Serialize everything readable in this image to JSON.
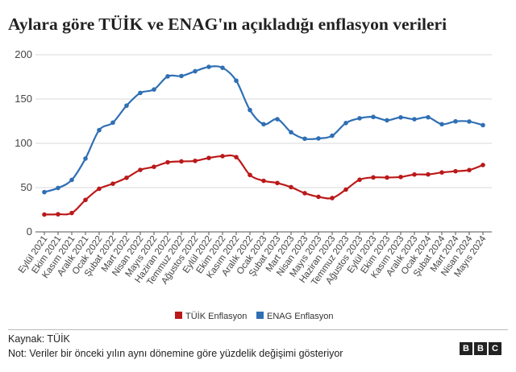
{
  "title": "Aylara göre TÜİK ve ENAG'ın açıkladığı enflasyon verileri",
  "source": "Kaynak: TÜİK",
  "note": "Not: Veriler bir önceki yılın aynı dönemine göre yüzdelik değişimi gösteriyor",
  "logo": [
    "B",
    "B",
    "C"
  ],
  "chart_data": {
    "type": "line",
    "title": "Aylara göre TÜİK ve ENAG'ın açıkladığı enflasyon verileri",
    "xlabel": "",
    "ylabel": "",
    "ylim": [
      0,
      200
    ],
    "yticks": [
      0,
      50,
      100,
      150,
      200
    ],
    "grid": true,
    "legend_position": "bottom-center",
    "categories": [
      "Eylül 2021",
      "Ekim 2021",
      "Kasım 2021",
      "Aralık 2021",
      "Ocak 2022",
      "Şubat 2022",
      "Mart 2022",
      "Nisan 2022",
      "Mayıs 2022",
      "Haziran 2022",
      "Temmuz 2022",
      "Ağustos 2022",
      "Eylül 2022",
      "Ekim 2022",
      "Kasım 2022",
      "Aralık 2022",
      "Ocak 2023",
      "Şubat 2023",
      "Mart 2023",
      "Nisan 2023",
      "Mayıs 2023",
      "Haziran 2023",
      "Temmuz 2023",
      "Ağustos 2023",
      "Eylül 2023",
      "Ekim 2023",
      "Kasım 2023",
      "Aralık 2023",
      "Ocak 2024",
      "Şubat 2024",
      "Mart 2024",
      "Nisan 2024",
      "Mayıs 2024"
    ],
    "series": [
      {
        "name": "TÜİK Enflasyon",
        "color": "#bb1919",
        "values": [
          19.6,
          19.9,
          21.3,
          36.1,
          48.7,
          54.4,
          61.1,
          70.0,
          73.5,
          78.6,
          79.6,
          80.2,
          83.5,
          85.5,
          84.4,
          64.3,
          57.7,
          55.2,
          50.5,
          43.7,
          39.6,
          38.2,
          47.8,
          58.9,
          61.5,
          61.4,
          62.0,
          64.8,
          64.9,
          67.1,
          68.5,
          69.8,
          75.5
        ]
      },
      {
        "name": "ENAG Enflasyon",
        "color": "#2f6fb4",
        "values": [
          44.9,
          49.6,
          58.7,
          82.8,
          114.9,
          123.4,
          142.6,
          156.9,
          160.8,
          175.6,
          176.0,
          181.4,
          186.3,
          185.3,
          170.7,
          137.6,
          121.6,
          127.2,
          112.5,
          105.2,
          105.5,
          108.6,
          122.9,
          128.3,
          129.8,
          126.0,
          129.3,
          127.2,
          129.4,
          121.6,
          124.8,
          124.6,
          120.5
        ]
      }
    ]
  }
}
